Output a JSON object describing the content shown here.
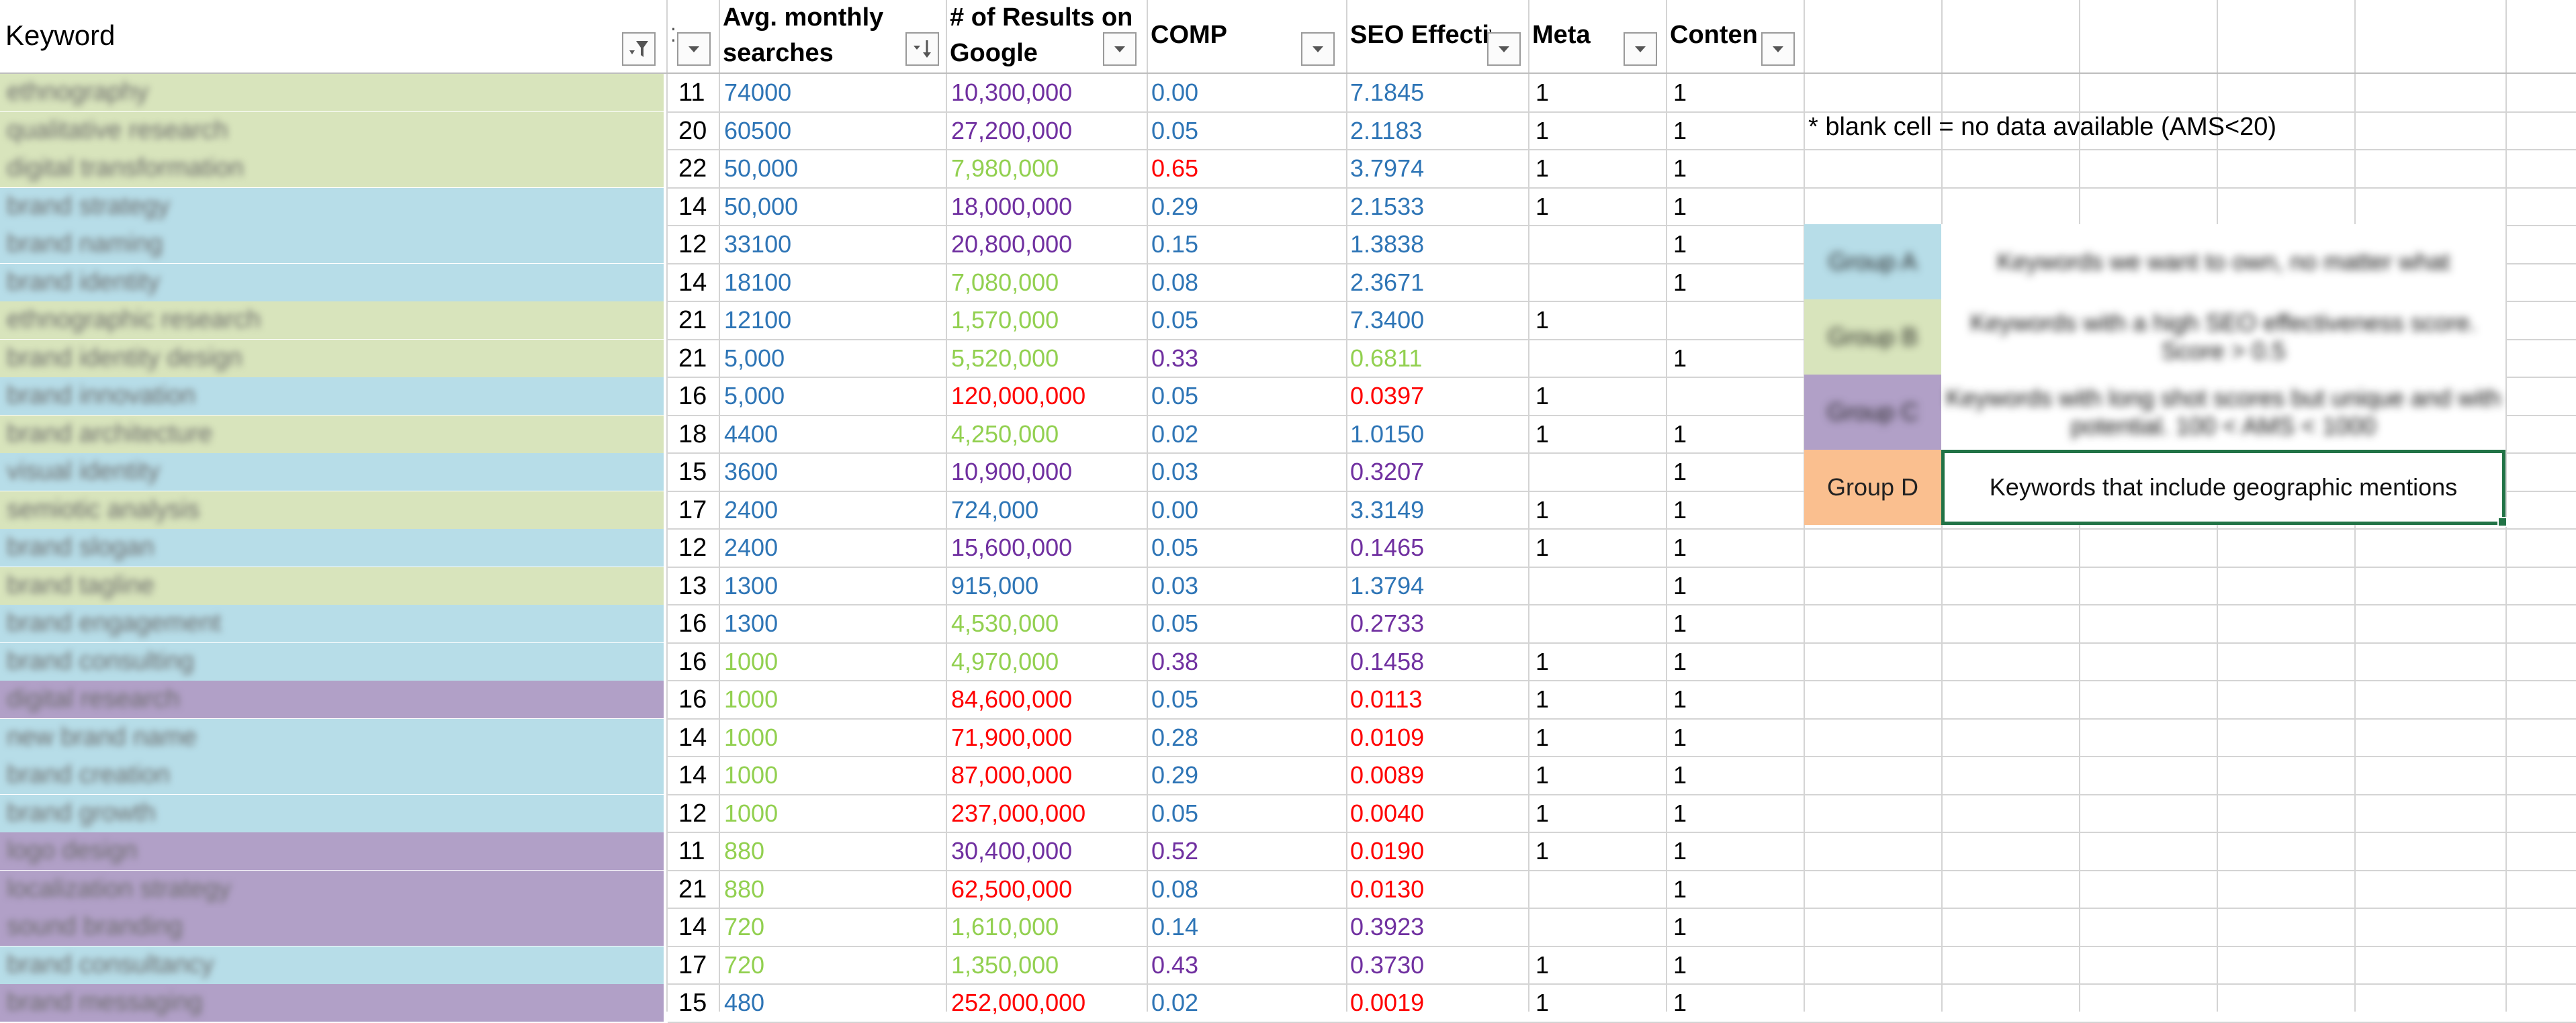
{
  "headers": {
    "keyword": "Keyword",
    "avg_monthly_line1": "Avg. monthly",
    "avg_monthly_line2": "searches",
    "results_line1": "# of Results on",
    "results_line2": "Google",
    "comp": "COMP",
    "seo": "SEO Effectiv",
    "meta": "Meta",
    "content": "Conten"
  },
  "note": "* blank cell =  no data available (AMS<20)",
  "colors": {
    "group_a": "#b7dde8",
    "group_b": "#d8e4bc",
    "group_c": "#b1a0c7",
    "group_d": "#fabf8f",
    "blue": "#2e75b6",
    "purple": "#7030a0",
    "green": "#92d050",
    "red": "#ff0000"
  },
  "legend": [
    {
      "label": "Group A",
      "desc": "Keywords we want to own, no matter what",
      "color": "group_a",
      "blurred": true
    },
    {
      "label": "Group B",
      "desc": "Keywords with a high SEO effectiveness score. Score > 0.5",
      "color": "group_b",
      "blurred": true
    },
    {
      "label": "Group C",
      "desc": "Keywords with long shot scores but unique and with potential. 100 < AMS < 1000",
      "color": "group_c",
      "blurred": true
    },
    {
      "label": "Group D",
      "desc": "Keywords that include geographic mentions",
      "color": "group_d",
      "blurred": false
    }
  ],
  "rows": [
    {
      "keyword": "ethnography",
      "group": "group_b",
      "num": "11",
      "ams": "74000",
      "ams_c": "blue",
      "res": "10,300,000",
      "res_c": "purple",
      "comp": "0.00",
      "comp_c": "blue",
      "seo": "7.1845",
      "seo_c": "blue",
      "meta": "1",
      "content": "1"
    },
    {
      "keyword": "qualitative research",
      "group": "group_b",
      "num": "20",
      "ams": "60500",
      "ams_c": "blue",
      "res": "27,200,000",
      "res_c": "purple",
      "comp": "0.05",
      "comp_c": "blue",
      "seo": "2.1183",
      "seo_c": "blue",
      "meta": "1",
      "content": "1"
    },
    {
      "keyword": "digital transformation",
      "group": "group_b",
      "num": "22",
      "ams": "50,000",
      "ams_c": "blue",
      "res": "7,980,000",
      "res_c": "green",
      "comp": "0.65",
      "comp_c": "red",
      "seo": "3.7974",
      "seo_c": "blue",
      "meta": "1",
      "content": "1"
    },
    {
      "keyword": "brand strategy",
      "group": "group_a",
      "num": "14",
      "ams": "50,000",
      "ams_c": "blue",
      "res": "18,000,000",
      "res_c": "purple",
      "comp": "0.29",
      "comp_c": "blue",
      "seo": "2.1533",
      "seo_c": "blue",
      "meta": "1",
      "content": "1"
    },
    {
      "keyword": "brand naming",
      "group": "group_a",
      "num": "12",
      "ams": "33100",
      "ams_c": "blue",
      "res": "20,800,000",
      "res_c": "purple",
      "comp": "0.15",
      "comp_c": "blue",
      "seo": "1.3838",
      "seo_c": "blue",
      "meta": "",
      "content": "1"
    },
    {
      "keyword": "brand identity",
      "group": "group_a",
      "num": "14",
      "ams": "18100",
      "ams_c": "blue",
      "res": "7,080,000",
      "res_c": "green",
      "comp": "0.08",
      "comp_c": "blue",
      "seo": "2.3671",
      "seo_c": "blue",
      "meta": "",
      "content": "1"
    },
    {
      "keyword": "ethnographic research",
      "group": "group_b",
      "num": "21",
      "ams": "12100",
      "ams_c": "blue",
      "res": "1,570,000",
      "res_c": "green",
      "comp": "0.05",
      "comp_c": "blue",
      "seo": "7.3400",
      "seo_c": "blue",
      "meta": "1",
      "content": ""
    },
    {
      "keyword": "brand identity design",
      "group": "group_b",
      "num": "21",
      "ams": "5,000",
      "ams_c": "blue",
      "res": "5,520,000",
      "res_c": "green",
      "comp": "0.33",
      "comp_c": "purple",
      "seo": "0.6811",
      "seo_c": "green",
      "meta": "",
      "content": "1"
    },
    {
      "keyword": "brand innovation",
      "group": "group_a",
      "num": "16",
      "ams": "5,000",
      "ams_c": "blue",
      "res": "120,000,000",
      "res_c": "red",
      "comp": "0.05",
      "comp_c": "blue",
      "seo": "0.0397",
      "seo_c": "red",
      "meta": "1",
      "content": ""
    },
    {
      "keyword": "brand architecture",
      "group": "group_b",
      "num": "18",
      "ams": "4400",
      "ams_c": "blue",
      "res": "4,250,000",
      "res_c": "green",
      "comp": "0.02",
      "comp_c": "blue",
      "seo": "1.0150",
      "seo_c": "blue",
      "meta": "1",
      "content": "1"
    },
    {
      "keyword": "visual identity",
      "group": "group_a",
      "num": "15",
      "ams": "3600",
      "ams_c": "blue",
      "res": "10,900,000",
      "res_c": "purple",
      "comp": "0.03",
      "comp_c": "blue",
      "seo": "0.3207",
      "seo_c": "purple",
      "meta": "",
      "content": "1"
    },
    {
      "keyword": "semiotic analysis",
      "group": "group_b",
      "num": "17",
      "ams": "2400",
      "ams_c": "blue",
      "res": "724,000",
      "res_c": "blue",
      "comp": "0.00",
      "comp_c": "blue",
      "seo": "3.3149",
      "seo_c": "blue",
      "meta": "1",
      "content": "1"
    },
    {
      "keyword": "brand slogan",
      "group": "group_a",
      "num": "12",
      "ams": "2400",
      "ams_c": "blue",
      "res": "15,600,000",
      "res_c": "purple",
      "comp": "0.05",
      "comp_c": "blue",
      "seo": "0.1465",
      "seo_c": "purple",
      "meta": "1",
      "content": "1"
    },
    {
      "keyword": "brand tagline",
      "group": "group_b",
      "num": "13",
      "ams": "1300",
      "ams_c": "blue",
      "res": "915,000",
      "res_c": "blue",
      "comp": "0.03",
      "comp_c": "blue",
      "seo": "1.3794",
      "seo_c": "blue",
      "meta": "",
      "content": "1"
    },
    {
      "keyword": "brand engagement",
      "group": "group_a",
      "num": "16",
      "ams": "1300",
      "ams_c": "blue",
      "res": "4,530,000",
      "res_c": "green",
      "comp": "0.05",
      "comp_c": "blue",
      "seo": "0.2733",
      "seo_c": "purple",
      "meta": "",
      "content": "1"
    },
    {
      "keyword": "brand consulting",
      "group": "group_a",
      "num": "16",
      "ams": "1000",
      "ams_c": "green",
      "res": "4,970,000",
      "res_c": "green",
      "comp": "0.38",
      "comp_c": "purple",
      "seo": "0.1458",
      "seo_c": "purple",
      "meta": "1",
      "content": "1"
    },
    {
      "keyword": "digital research",
      "group": "group_c",
      "num": "16",
      "ams": "1000",
      "ams_c": "green",
      "res": "84,600,000",
      "res_c": "red",
      "comp": "0.05",
      "comp_c": "blue",
      "seo": "0.0113",
      "seo_c": "red",
      "meta": "1",
      "content": "1"
    },
    {
      "keyword": "new brand name",
      "group": "group_a",
      "num": "14",
      "ams": "1000",
      "ams_c": "green",
      "res": "71,900,000",
      "res_c": "red",
      "comp": "0.28",
      "comp_c": "blue",
      "seo": "0.0109",
      "seo_c": "red",
      "meta": "1",
      "content": "1"
    },
    {
      "keyword": "brand creation",
      "group": "group_a",
      "num": "14",
      "ams": "1000",
      "ams_c": "green",
      "res": "87,000,000",
      "res_c": "red",
      "comp": "0.29",
      "comp_c": "blue",
      "seo": "0.0089",
      "seo_c": "red",
      "meta": "1",
      "content": "1"
    },
    {
      "keyword": "brand growth",
      "group": "group_a",
      "num": "12",
      "ams": "1000",
      "ams_c": "green",
      "res": "237,000,000",
      "res_c": "red",
      "comp": "0.05",
      "comp_c": "blue",
      "seo": "0.0040",
      "seo_c": "red",
      "meta": "1",
      "content": "1"
    },
    {
      "keyword": "logo design",
      "group": "group_c",
      "num": "11",
      "ams": "880",
      "ams_c": "green",
      "res": "30,400,000",
      "res_c": "purple",
      "comp": "0.52",
      "comp_c": "purple",
      "seo": "0.0190",
      "seo_c": "red",
      "meta": "1",
      "content": "1"
    },
    {
      "keyword": "localization strategy",
      "group": "group_c",
      "num": "21",
      "ams": "880",
      "ams_c": "green",
      "res": "62,500,000",
      "res_c": "red",
      "comp": "0.08",
      "comp_c": "blue",
      "seo": "0.0130",
      "seo_c": "red",
      "meta": "",
      "content": "1"
    },
    {
      "keyword": "sound branding",
      "group": "group_c",
      "num": "14",
      "ams": "720",
      "ams_c": "green",
      "res": "1,610,000",
      "res_c": "green",
      "comp": "0.14",
      "comp_c": "blue",
      "seo": "0.3923",
      "seo_c": "purple",
      "meta": "",
      "content": "1"
    },
    {
      "keyword": "brand consultancy",
      "group": "group_a",
      "num": "17",
      "ams": "720",
      "ams_c": "green",
      "res": "1,350,000",
      "res_c": "green",
      "comp": "0.43",
      "comp_c": "purple",
      "seo": "0.3730",
      "seo_c": "purple",
      "meta": "1",
      "content": "1"
    },
    {
      "keyword": "brand messaging",
      "group": "group_c",
      "num": "15",
      "ams": "480",
      "ams_c": "blue",
      "res": "252,000,000",
      "res_c": "red",
      "comp": "0.02",
      "comp_c": "blue",
      "seo": "0.0019",
      "seo_c": "red",
      "meta": "1",
      "content": "1"
    }
  ]
}
